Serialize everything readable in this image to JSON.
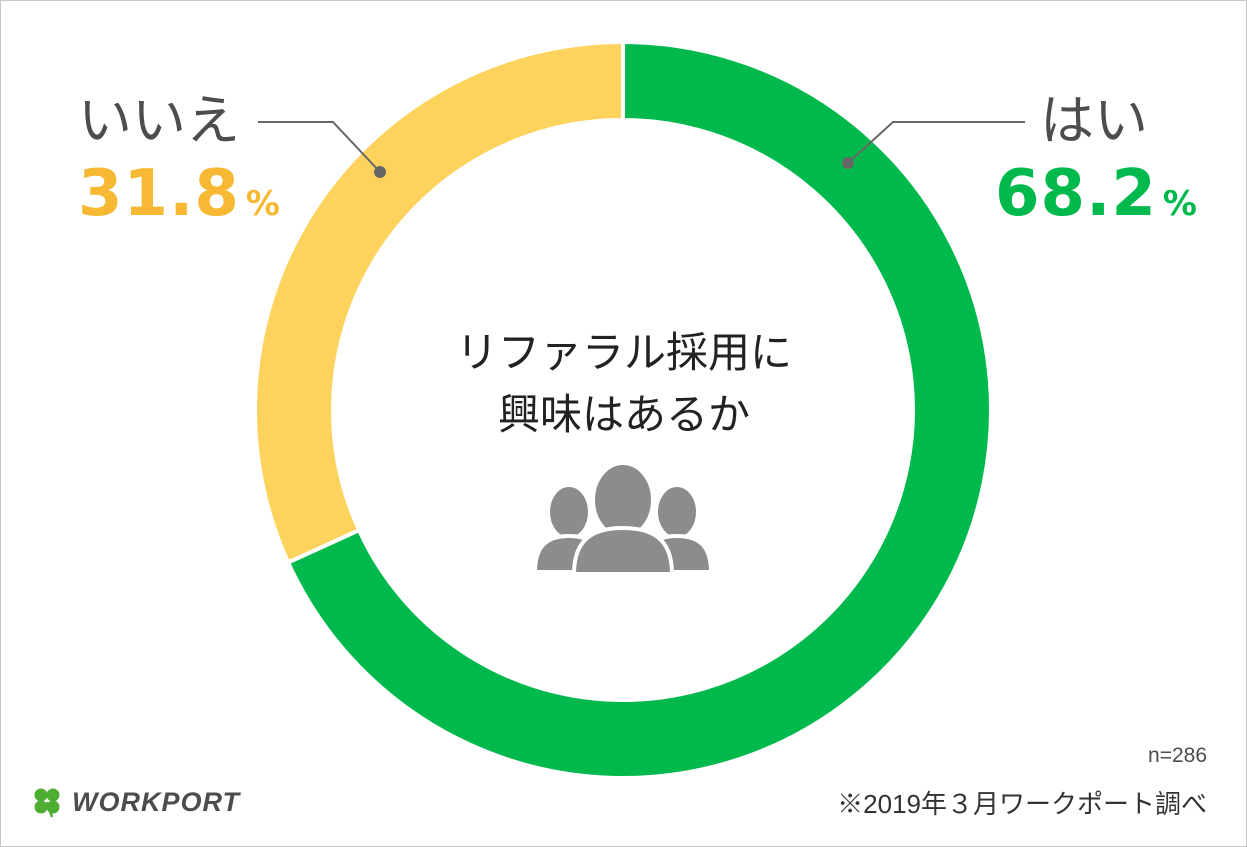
{
  "chart_data": {
    "type": "pie",
    "title": "リファラル採用に興味はあるか",
    "title_lines": [
      "リファラル採用に",
      "興味はあるか"
    ],
    "categories": [
      "はい",
      "いいえ"
    ],
    "values": [
      68.2,
      31.8
    ],
    "value_labels": [
      "68.2",
      "31.8"
    ],
    "unit": "%",
    "colors": [
      "#00b94c",
      "#fdd35d"
    ],
    "donut": true
  },
  "labels": {
    "yes": {
      "name": "はい",
      "value": "68.2",
      "unit": "%",
      "color": "#00b94c"
    },
    "no": {
      "name": "いいえ",
      "value": "31.8",
      "unit": "%",
      "color": "#f7b833"
    }
  },
  "center_icon": "group-of-people-icon",
  "sample_note": "n=286",
  "source_note": "※2019年３月ワークポート調べ",
  "brand": {
    "name": "WORKPORT",
    "icon": "four-leaf-clover-icon",
    "color": "#4fae32"
  },
  "colors": {
    "leader_line": "#666666",
    "text": "#4d4d4d",
    "icon": "#8c8c8c"
  }
}
